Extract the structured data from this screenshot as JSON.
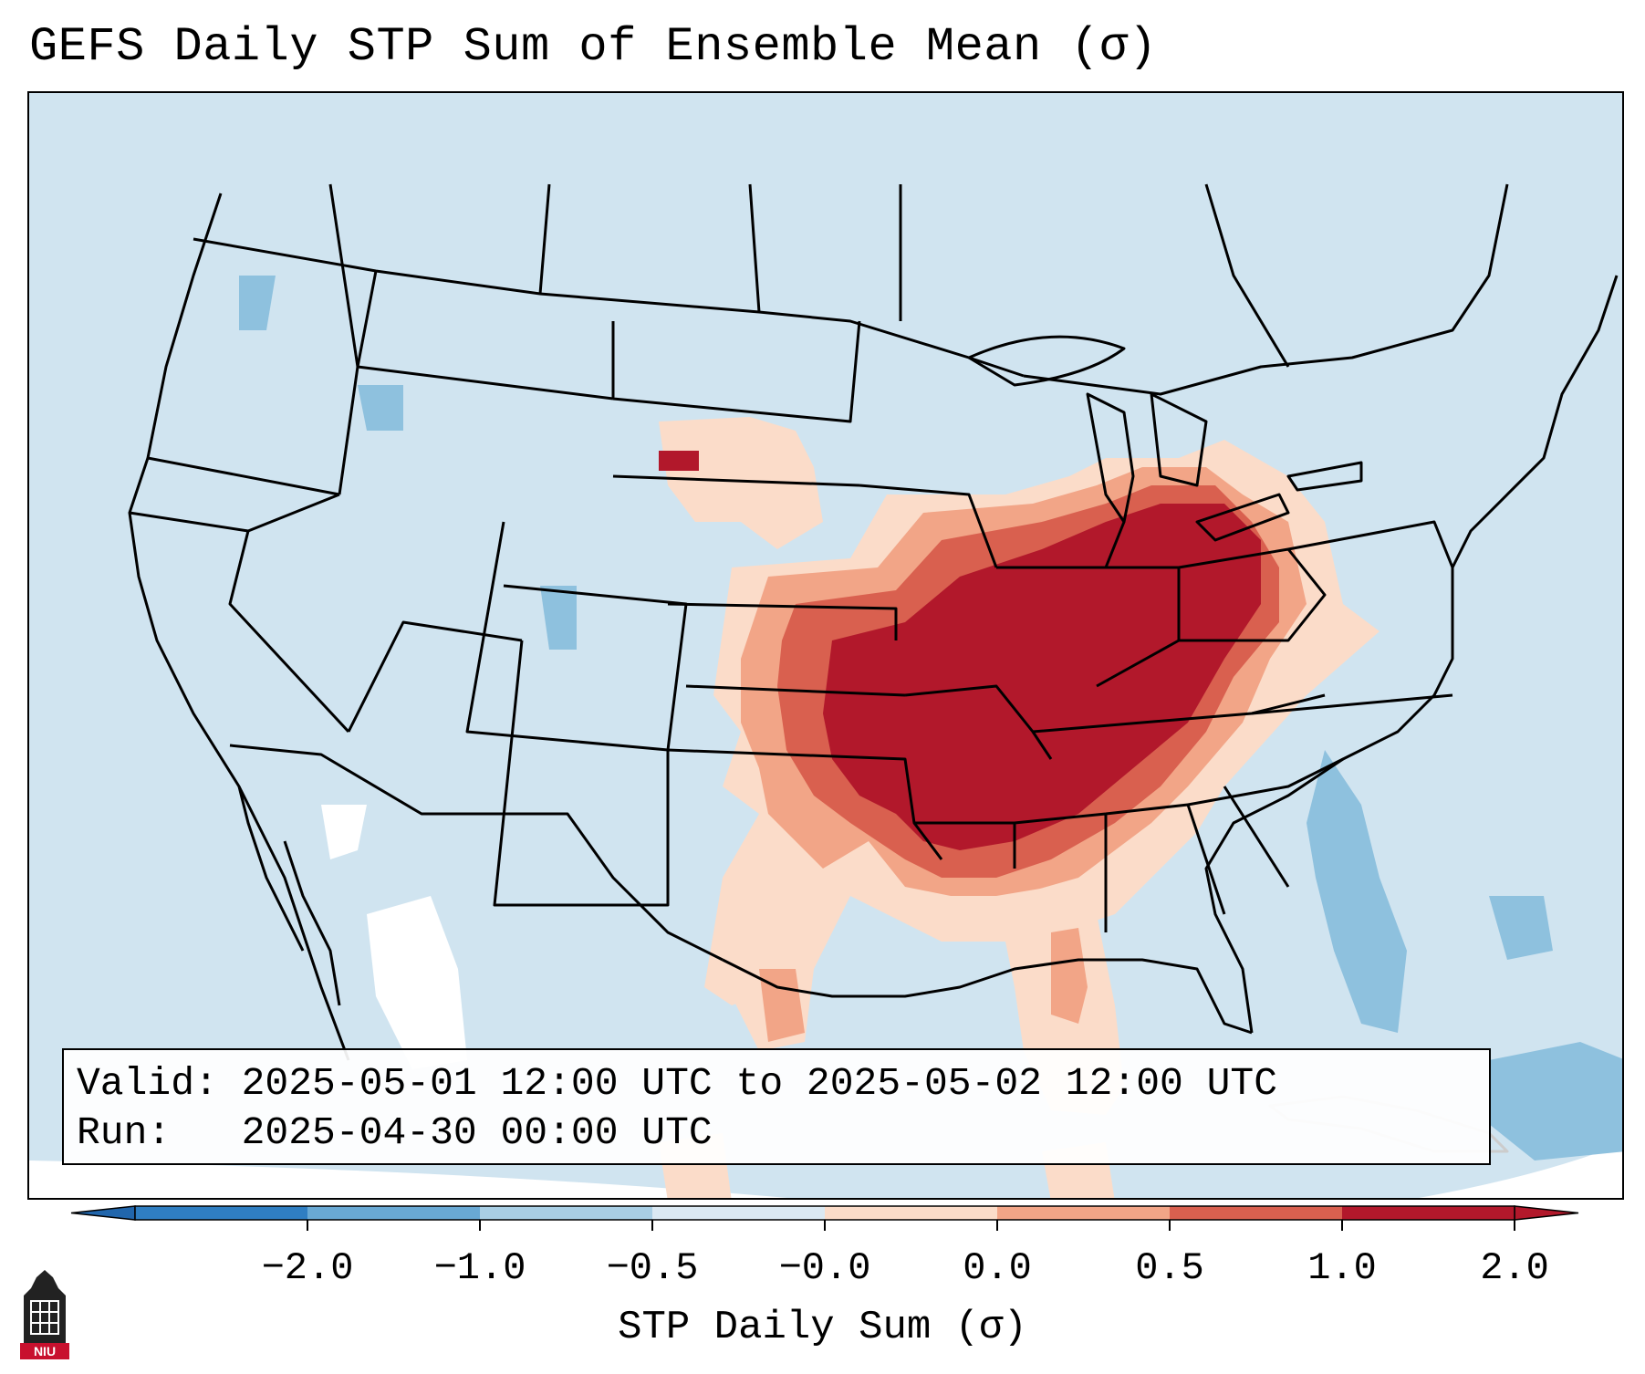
{
  "title": "GEFS Daily STP Sum of Ensemble Mean (σ)",
  "info_box": {
    "valid_line": "Valid: 2025-05-01 12:00 UTC to 2025-05-02 12:00 UTC",
    "run_line": "Run:   2025-04-30 00:00 UTC"
  },
  "colorbar": {
    "title": "STP Daily Sum (σ)",
    "ticks": [
      "−2.0",
      "−1.0",
      "−0.5",
      "−0.0",
      "0.0",
      "0.5",
      "1.0",
      "2.0"
    ],
    "colors": [
      "#2f7ec2",
      "#69a9d4",
      "#a9cfe5",
      "#dbe9f3",
      "#fbdcc9",
      "#f2a587",
      "#d9604f",
      "#b2182b"
    ],
    "extend_low_color": "#2166ac",
    "extend_high_color": "#b2182b"
  },
  "map": {
    "background_color": "#d0e4f0",
    "high_color": "#b2182b",
    "mid_color": "#d9604f",
    "low_color": "#f2a587",
    "faint_color": "#fbdcc9",
    "neg_color": "#8ec1de"
  },
  "logo": {
    "text": "NIU"
  }
}
